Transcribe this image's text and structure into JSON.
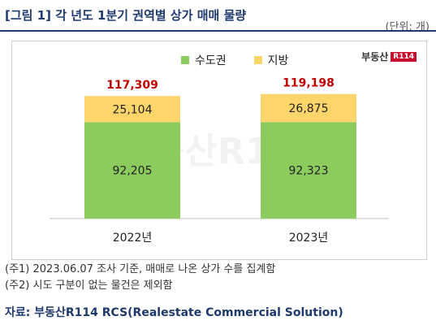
{
  "header": {
    "title": "[그림 1] 각 년도 1분기 권역별 상가 매매 물량",
    "unit": "(단위: 개)"
  },
  "brand": {
    "name": "부동산",
    "badge": "R114"
  },
  "colors": {
    "capital": "#8ccb5e",
    "regional": "#fdd56a",
    "total_label": "#c00000",
    "title": "#1f3a6e"
  },
  "chart_data": {
    "type": "bar",
    "stacked": true,
    "categories": [
      "2022년",
      "2023년"
    ],
    "series": [
      {
        "name": "수도권",
        "values": [
          92205,
          92323
        ]
      },
      {
        "name": "지방",
        "values": [
          25104,
          26875
        ]
      }
    ],
    "totals": [
      117309,
      119198
    ],
    "labels": {
      "series": [
        [
          "92,205",
          "92,323"
        ],
        [
          "25,104",
          "26,875"
        ]
      ],
      "totals": [
        "117,309",
        "119,198"
      ]
    },
    "ylim": [
      0,
      140000
    ],
    "legend_position": "top",
    "grid": false
  },
  "footer": {
    "notes": [
      "(주1) 2023.06.07 조사 기준, 매매로 나온 상가 수를 집계함",
      "(주2) 시도 구분이 없는 물건은 제외함"
    ],
    "source": "자료: 부동산R114 RCS(Realestate Commercial Solution)"
  }
}
